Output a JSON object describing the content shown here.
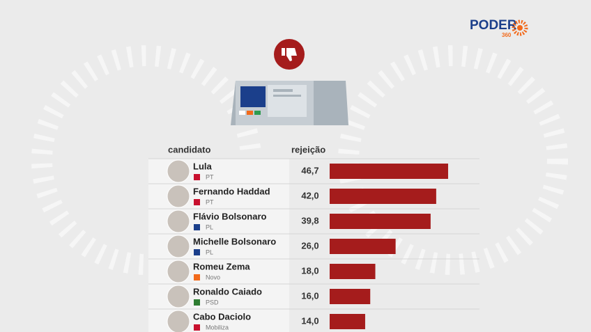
{
  "chart_data": {
    "type": "bar",
    "logo": {
      "name": "PODER",
      "number": "360"
    },
    "category_header": "candidato",
    "value_header": "rejeição",
    "categories": [
      "Lula",
      "Fernando Haddad",
      "Flávio Bolsonaro",
      "Michelle Bolsonaro",
      "Romeu Zema",
      "Ronaldo Caiado",
      "Cabo Daciolo"
    ],
    "parties": [
      "PT",
      "PT",
      "PL",
      "PL",
      "Novo",
      "PSD",
      "Mobiliza"
    ],
    "values": [
      46.7,
      42.0,
      39.8,
      26.0,
      18.0,
      16.0,
      14.0
    ],
    "value_labels": [
      "46,7",
      "42,0",
      "39,8",
      "26,0",
      "18,0",
      "16,0",
      "14,0"
    ],
    "color": "#a51c1c"
  }
}
